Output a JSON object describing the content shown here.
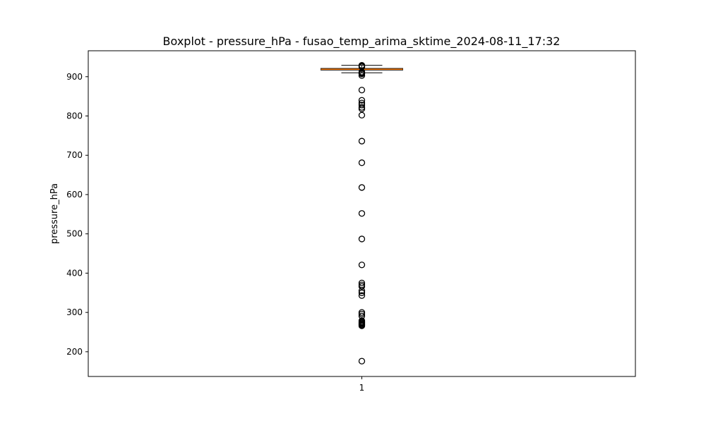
{
  "chart_data": {
    "type": "boxplot",
    "title": "Boxplot - pressure_hPa - fusao_temp_arima_sktime_2024-08-11_17:32",
    "xlabel": "",
    "ylabel": "pressure_hPa",
    "x_ticks": [
      "1"
    ],
    "y_ticks": [
      200,
      300,
      400,
      500,
      600,
      700,
      800,
      900
    ],
    "ylim": [
      137,
      966
    ],
    "grid": false,
    "box": {
      "category": "1",
      "q1": 917,
      "median": 919,
      "q3": 921,
      "whisker_low": 910,
      "whisker_high": 929,
      "outliers": [
        929,
        927,
        926,
        925,
        912,
        910,
        908,
        907,
        903,
        866,
        840,
        833,
        828,
        822,
        818,
        802,
        736,
        681,
        618,
        552,
        487,
        421,
        375,
        370,
        366,
        355,
        350,
        343,
        300,
        296,
        291,
        279,
        276,
        274,
        272,
        270,
        268,
        266,
        176
      ]
    },
    "colors": {
      "median": "#ff7f0e",
      "box": "#000000",
      "outlier": "#000000"
    }
  }
}
